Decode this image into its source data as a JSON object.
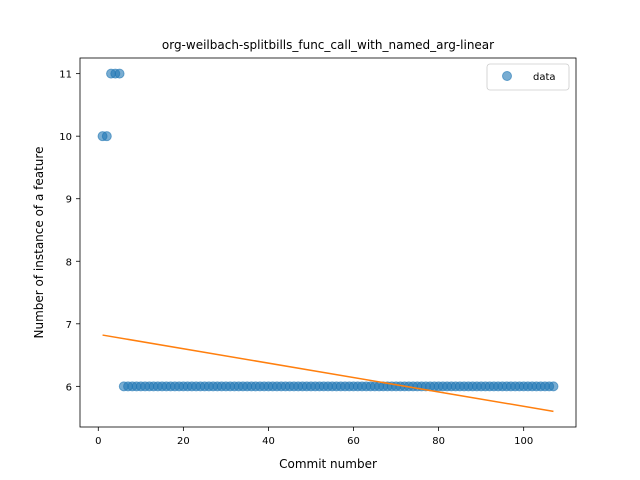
{
  "chart_data": {
    "type": "scatter",
    "title": "org-weilbach-splitbills_func_call_with_named_arg-linear",
    "xlabel": "Commit number",
    "ylabel": "Number of instance of a feature",
    "xlim": [
      -4.3,
      112.3
    ],
    "ylim": [
      5.35,
      11.25
    ],
    "xticks": [
      0,
      20,
      40,
      60,
      80,
      100
    ],
    "yticks": [
      6,
      7,
      8,
      9,
      10,
      11
    ],
    "grid": false,
    "legend": {
      "placement": "top-right",
      "entries": [
        "data"
      ]
    },
    "series": [
      {
        "name": "data",
        "kind": "scatter",
        "color": "#1f77b4",
        "points": [
          [
            1,
            10
          ],
          [
            2,
            10
          ],
          [
            3,
            11
          ],
          [
            4,
            11
          ],
          [
            5,
            11
          ],
          [
            6,
            6
          ],
          [
            7,
            6
          ],
          [
            8,
            6
          ],
          [
            9,
            6
          ],
          [
            10,
            6
          ],
          [
            11,
            6
          ],
          [
            12,
            6
          ],
          [
            13,
            6
          ],
          [
            14,
            6
          ],
          [
            15,
            6
          ],
          [
            16,
            6
          ],
          [
            17,
            6
          ],
          [
            18,
            6
          ],
          [
            19,
            6
          ],
          [
            20,
            6
          ],
          [
            21,
            6
          ],
          [
            22,
            6
          ],
          [
            23,
            6
          ],
          [
            24,
            6
          ],
          [
            25,
            6
          ],
          [
            26,
            6
          ],
          [
            27,
            6
          ],
          [
            28,
            6
          ],
          [
            29,
            6
          ],
          [
            30,
            6
          ],
          [
            31,
            6
          ],
          [
            32,
            6
          ],
          [
            33,
            6
          ],
          [
            34,
            6
          ],
          [
            35,
            6
          ],
          [
            36,
            6
          ],
          [
            37,
            6
          ],
          [
            38,
            6
          ],
          [
            39,
            6
          ],
          [
            40,
            6
          ],
          [
            41,
            6
          ],
          [
            42,
            6
          ],
          [
            43,
            6
          ],
          [
            44,
            6
          ],
          [
            45,
            6
          ],
          [
            46,
            6
          ],
          [
            47,
            6
          ],
          [
            48,
            6
          ],
          [
            49,
            6
          ],
          [
            50,
            6
          ],
          [
            51,
            6
          ],
          [
            52,
            6
          ],
          [
            53,
            6
          ],
          [
            54,
            6
          ],
          [
            55,
            6
          ],
          [
            56,
            6
          ],
          [
            57,
            6
          ],
          [
            58,
            6
          ],
          [
            59,
            6
          ],
          [
            60,
            6
          ],
          [
            61,
            6
          ],
          [
            62,
            6
          ],
          [
            63,
            6
          ],
          [
            64,
            6
          ],
          [
            65,
            6
          ],
          [
            66,
            6
          ],
          [
            67,
            6
          ],
          [
            68,
            6
          ],
          [
            69,
            6
          ],
          [
            70,
            6
          ],
          [
            71,
            6
          ],
          [
            72,
            6
          ],
          [
            73,
            6
          ],
          [
            74,
            6
          ],
          [
            75,
            6
          ],
          [
            76,
            6
          ],
          [
            77,
            6
          ],
          [
            78,
            6
          ],
          [
            79,
            6
          ],
          [
            80,
            6
          ],
          [
            81,
            6
          ],
          [
            82,
            6
          ],
          [
            83,
            6
          ],
          [
            84,
            6
          ],
          [
            85,
            6
          ],
          [
            86,
            6
          ],
          [
            87,
            6
          ],
          [
            88,
            6
          ],
          [
            89,
            6
          ],
          [
            90,
            6
          ],
          [
            91,
            6
          ],
          [
            92,
            6
          ],
          [
            93,
            6
          ],
          [
            94,
            6
          ],
          [
            95,
            6
          ],
          [
            96,
            6
          ],
          [
            97,
            6
          ],
          [
            98,
            6
          ],
          [
            99,
            6
          ],
          [
            100,
            6
          ],
          [
            101,
            6
          ],
          [
            102,
            6
          ],
          [
            103,
            6
          ],
          [
            104,
            6
          ],
          [
            105,
            6
          ],
          [
            106,
            6
          ],
          [
            107,
            6
          ]
        ]
      },
      {
        "kind": "line",
        "color": "#ff7f0e",
        "points": [
          [
            1,
            6.82
          ],
          [
            107,
            5.6
          ]
        ]
      }
    ]
  }
}
